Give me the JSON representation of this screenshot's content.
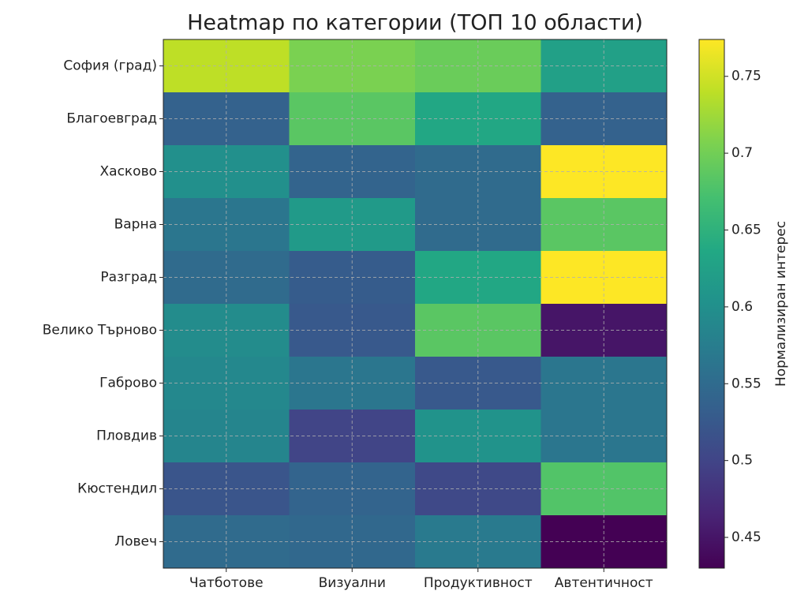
{
  "chart_data": {
    "type": "heatmap",
    "title": "Heatmap по категории (ТОП 10 области)",
    "x_categories": [
      "Чатботове",
      "Визуални",
      "Продуктивност",
      "Автентичност"
    ],
    "y_categories": [
      "София (град)",
      "Благоевград",
      "Хасково",
      "Варна",
      "Разград",
      "Велико Търново",
      "Габрово",
      "Пловдив",
      "Кюстендил",
      "Ловеч"
    ],
    "values": [
      [
        0.74,
        0.705,
        0.695,
        0.625
      ],
      [
        0.537,
        0.685,
        0.635,
        0.537
      ],
      [
        0.6,
        0.54,
        0.55,
        0.774
      ],
      [
        0.565,
        0.615,
        0.55,
        0.685
      ],
      [
        0.55,
        0.53,
        0.635,
        0.774
      ],
      [
        0.595,
        0.525,
        0.685,
        0.45
      ],
      [
        0.59,
        0.565,
        0.525,
        0.565
      ],
      [
        0.585,
        0.5,
        0.605,
        0.565
      ],
      [
        0.52,
        0.54,
        0.505,
        0.68
      ],
      [
        0.55,
        0.545,
        0.57,
        0.43
      ]
    ],
    "colormap": "viridis",
    "zlim": [
      0.43,
      0.774
    ],
    "colorbar_ticks": [
      0.45,
      0.5,
      0.55,
      0.6,
      0.65,
      0.7,
      0.75
    ],
    "colorbar_label": "Нормализиран интерес",
    "grid": true
  }
}
